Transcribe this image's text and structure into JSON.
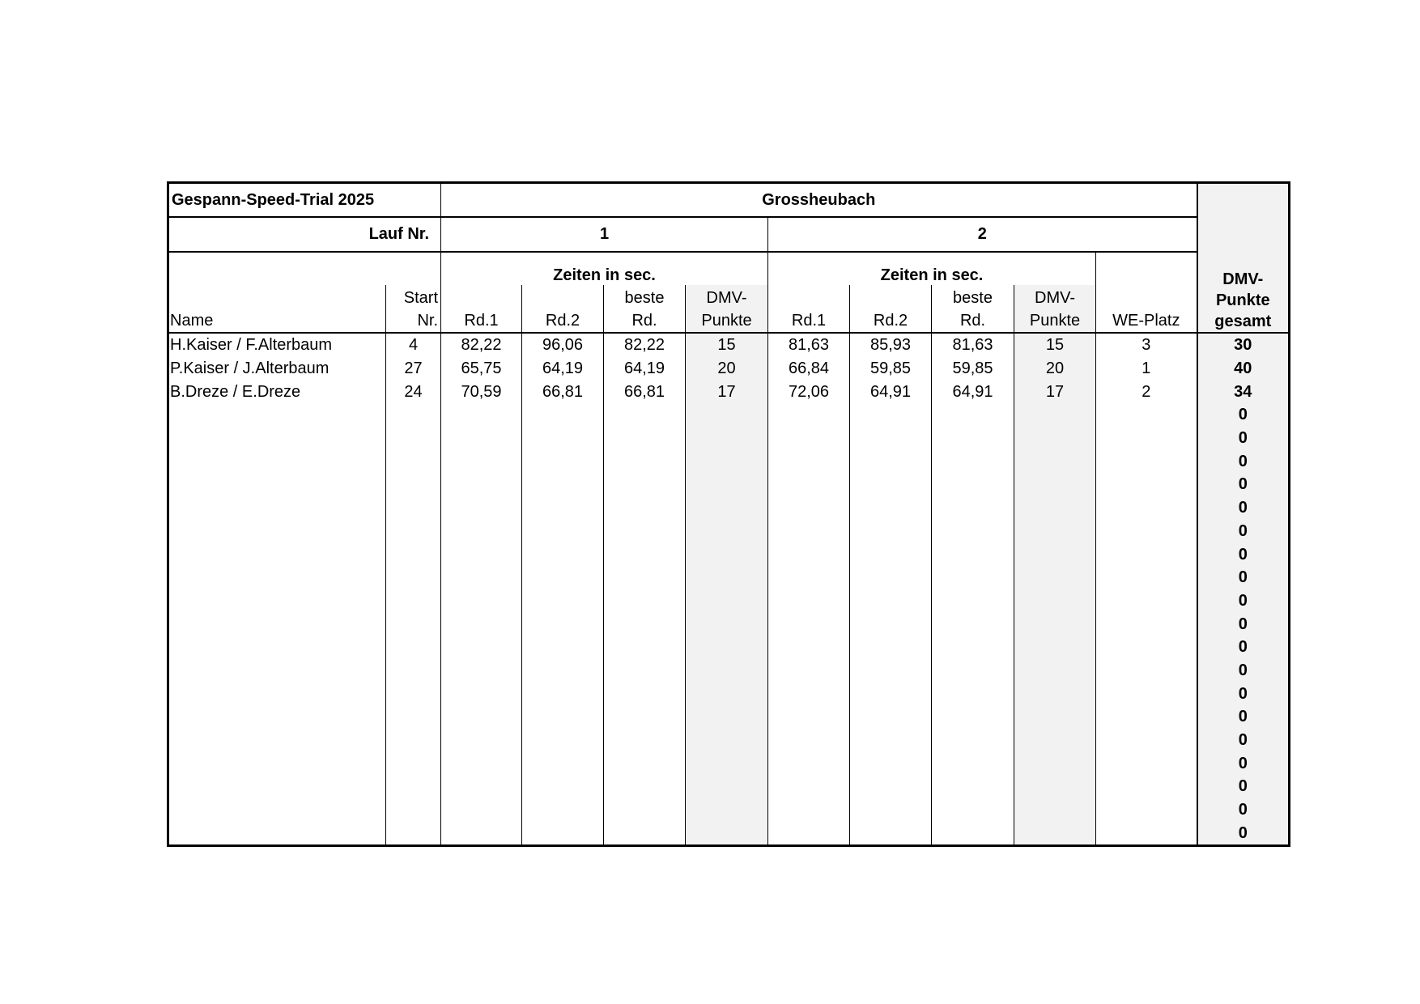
{
  "header": {
    "title": "Gespann-Speed-Trial 2025",
    "location": "Grossheubach",
    "lauf_label": "Lauf Nr.",
    "lauf1": "1",
    "lauf2": "2",
    "zeiten1": "Zeiten in sec.",
    "zeiten2": "Zeiten in sec.",
    "we_platz": "WE-Platz",
    "gesamt_l1": "DMV-",
    "gesamt_l2": "Punkte",
    "gesamt_l3": "gesamt",
    "columns": {
      "name": "Name",
      "start_l1": "Start",
      "start_l2": "Nr.",
      "rd1": "Rd.1",
      "rd2": "Rd.2",
      "beste_l1": "beste",
      "beste_l2": "Rd.",
      "dmv_l1": "DMV-",
      "dmv_l2": "Punkte"
    }
  },
  "colors": {
    "shade": "#f2f2f2",
    "border": "#000000"
  },
  "rows": [
    {
      "name": "H.Kaiser / F.Alterbaum",
      "start": "4",
      "l1_rd1": "82,22",
      "l1_rd2": "96,06",
      "l1_best": "82,22",
      "l1_pts": "15",
      "l2_rd1": "81,63",
      "l2_rd2": "85,93",
      "l2_best": "81,63",
      "l2_pts": "15",
      "we_platz": "3",
      "total": "30"
    },
    {
      "name": "P.Kaiser / J.Alterbaum",
      "start": "27",
      "l1_rd1": "65,75",
      "l1_rd2": "64,19",
      "l1_best": "64,19",
      "l1_pts": "20",
      "l2_rd1": "66,84",
      "l2_rd2": "59,85",
      "l2_best": "59,85",
      "l2_pts": "20",
      "we_platz": "1",
      "total": "40"
    },
    {
      "name": "B.Dreze / E.Dreze",
      "start": "24",
      "l1_rd1": "70,59",
      "l1_rd2": "66,81",
      "l1_best": "66,81",
      "l1_pts": "17",
      "l2_rd1": "72,06",
      "l2_rd2": "64,91",
      "l2_best": "64,91",
      "l2_pts": "17",
      "we_platz": "2",
      "total": "34"
    },
    {
      "total": "0"
    },
    {
      "total": "0"
    },
    {
      "total": "0"
    },
    {
      "total": "0"
    },
    {
      "total": "0"
    },
    {
      "total": "0"
    },
    {
      "total": "0"
    },
    {
      "total": "0"
    },
    {
      "total": "0"
    },
    {
      "total": "0"
    },
    {
      "total": "0"
    },
    {
      "total": "0"
    },
    {
      "total": "0"
    },
    {
      "total": "0"
    },
    {
      "total": "0"
    },
    {
      "total": "0"
    },
    {
      "total": "0"
    },
    {
      "total": "0"
    },
    {
      "total": "0"
    }
  ]
}
